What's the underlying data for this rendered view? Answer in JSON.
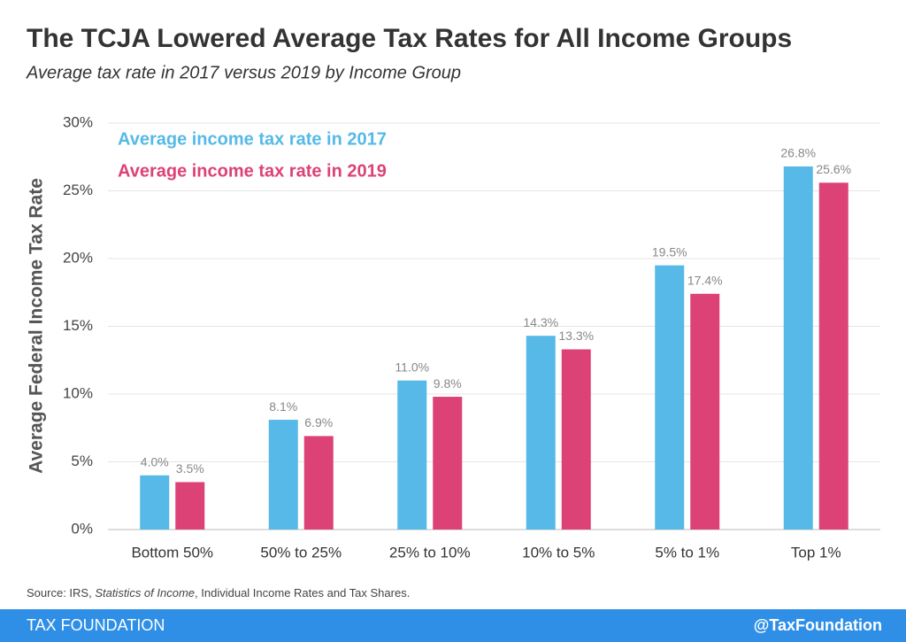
{
  "chart_data": {
    "type": "bar",
    "title": "The TCJA Lowered Average Tax Rates for All Income Groups",
    "subtitle": "Average tax rate in 2017 versus 2019 by Income Group",
    "y_label": "Average Federal Income Tax Rate",
    "categories": [
      "Bottom 50%",
      "50% to 25%",
      "25% to 10%",
      "10% to 5%",
      "5% to 1%",
      "Top 1%"
    ],
    "series": [
      {
        "name": "Average income tax rate in 2017",
        "color": "#56b9e7",
        "values": [
          4.0,
          8.1,
          11.0,
          14.3,
          19.5,
          26.8
        ],
        "value_labels": [
          "4.0%",
          "8.1%",
          "11.0%",
          "14.3%",
          "19.5%",
          "26.8%"
        ]
      },
      {
        "name": "Average income tax rate in 2019",
        "color": "#dc4275",
        "values": [
          3.5,
          6.9,
          9.8,
          13.3,
          17.4,
          25.6
        ],
        "value_labels": [
          "3.5%",
          "6.9%",
          "9.8%",
          "13.3%",
          "17.4%",
          "25.6%"
        ]
      }
    ],
    "ylim": [
      0,
      30
    ],
    "yticks": [
      {
        "value": 0,
        "label": "0%"
      },
      {
        "value": 5,
        "label": "5%"
      },
      {
        "value": 10,
        "label": "10%"
      },
      {
        "value": 15,
        "label": "15%"
      },
      {
        "value": 20,
        "label": "20%"
      },
      {
        "value": 25,
        "label": "25%"
      },
      {
        "value": 30,
        "label": "30%"
      }
    ],
    "grid": true,
    "legend": "top-left",
    "source": [
      "Source: IRS, ",
      "Statistics of Income",
      ", Individual Income Rates and Tax Shares."
    ]
  },
  "footer": {
    "left": "TAX FOUNDATION",
    "right": "@TaxFoundation"
  }
}
